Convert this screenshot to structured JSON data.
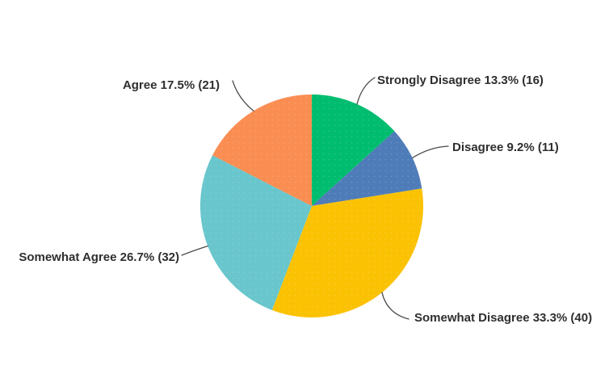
{
  "page": {
    "background_color": "#ffffff"
  },
  "chart_data": {
    "type": "pie",
    "title": "",
    "direction": "clockwise",
    "start_angle_deg": 0,
    "legend_position": "none",
    "labels_style": "external-with-leader-lines",
    "label_text_color": "#2e2e2e",
    "leader_line_color": "#4a4a4a",
    "slices": [
      {
        "label": "Strongly Disagree",
        "percent": 13.3,
        "count": 16,
        "display": "Strongly Disagree 13.3% (16)",
        "color": "#00BC6F"
      },
      {
        "label": "Disagree",
        "percent": 9.2,
        "count": 11,
        "display": "Disagree 9.2% (11)",
        "color": "#4E7CB8"
      },
      {
        "label": "Somewhat Disagree",
        "percent": 33.3,
        "count": 40,
        "display": "Somewhat Disagree 33.3% (40)",
        "color": "#FBC203"
      },
      {
        "label": "Somewhat Agree",
        "percent": 26.7,
        "count": 32,
        "display": "Somewhat Agree 26.7% (32)",
        "color": "#68C6CC"
      },
      {
        "label": "Agree",
        "percent": 17.5,
        "count": 21,
        "display": "Agree 17.5% (21)",
        "color": "#FA8D52"
      }
    ]
  }
}
